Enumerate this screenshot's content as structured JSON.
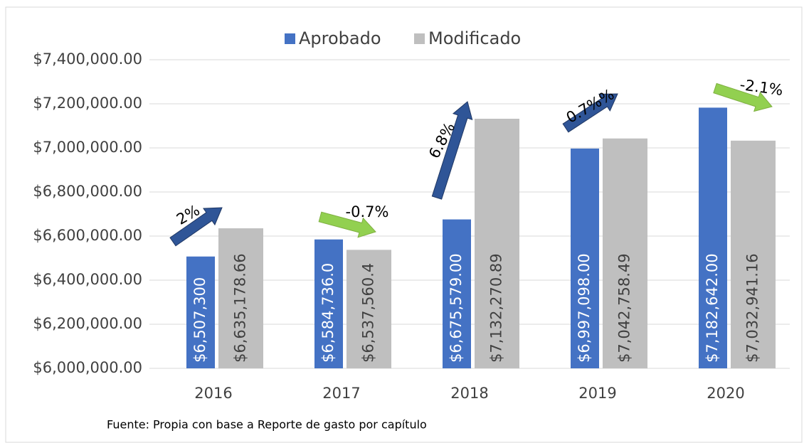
{
  "chart_data": {
    "type": "bar",
    "categories": [
      "2016",
      "2017",
      "2018",
      "2019",
      "2020"
    ],
    "series": [
      {
        "name": "Aprobado",
        "color": "#4472c4",
        "text_color": "#ffffff",
        "values": [
          6507300,
          6584736,
          6675579,
          6997098,
          7182642
        ],
        "value_labels": [
          "$6,507,300",
          "$6,584,736.0",
          "$6,675,579.00",
          "$6,997,098.00",
          "$7,182,642.00"
        ]
      },
      {
        "name": "Modificado",
        "color": "#bfbfbf",
        "text_color": "#404040",
        "values": [
          6635178.66,
          6537560.42,
          7132270.89,
          7042758.49,
          7032941.16
        ],
        "value_labels": [
          "$6,635,178.66",
          "$6,537,560.4",
          "$7,132,270.89",
          "$7,042,758.49",
          "$7,032,941.16"
        ]
      }
    ],
    "ylim": [
      6000000,
      7400000
    ],
    "yticks": [
      {
        "value": 6000000,
        "label": "$6,000,000.00"
      },
      {
        "value": 6200000,
        "label": "$6,200,000.00"
      },
      {
        "value": 6400000,
        "label": "$6,400,000.00"
      },
      {
        "value": 6600000,
        "label": "$6,600,000.00"
      },
      {
        "value": 6800000,
        "label": "$6,800,000.00"
      },
      {
        "value": 7000000,
        "label": "$7,000,000.00"
      },
      {
        "value": 7200000,
        "label": "$7,200,000.00"
      },
      {
        "value": 7400000,
        "label": "$7,400,000.00"
      }
    ],
    "grid": true,
    "legend": "top",
    "annotations": [
      {
        "text": "2%",
        "color": "#2f5597"
      },
      {
        "text": "-0.7%",
        "color": "#92d050"
      },
      {
        "text": "6.8%",
        "color": "#2f5597"
      },
      {
        "text": "0.7%%",
        "color": "#2f5597"
      },
      {
        "text": "-2.1%",
        "color": "#92d050"
      }
    ],
    "source": "Fuente: Propia con base a Reporte de gasto por capítulo"
  }
}
